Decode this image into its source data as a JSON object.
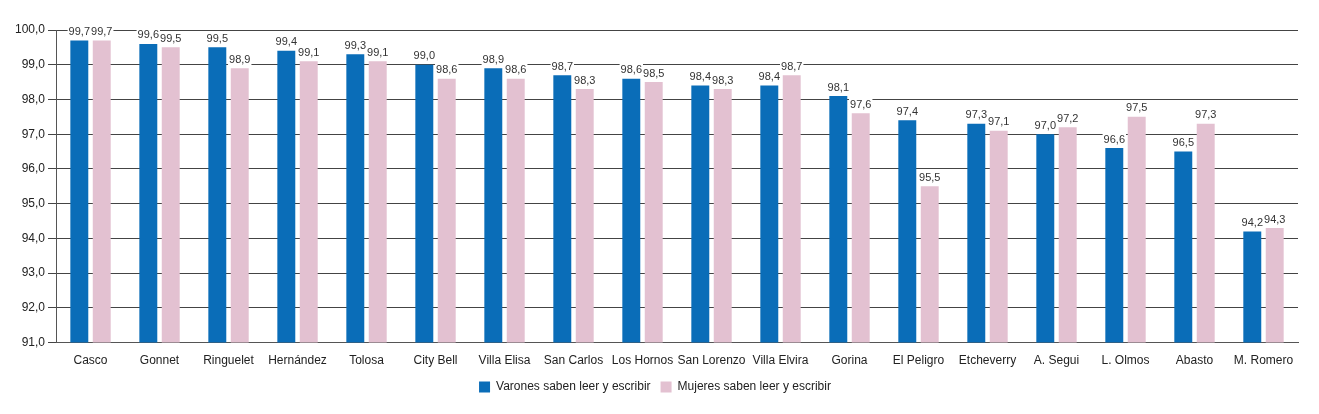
{
  "chart_data": {
    "type": "bar",
    "categories": [
      "Casco",
      "Gonnet",
      "Ringuelet",
      "Hernández",
      "Tolosa",
      "City Bell",
      "Villa Elisa",
      "San Carlos",
      "Los Hornos",
      "San Lorenzo",
      "Villa Elvira",
      "Gorina",
      "El Peligro",
      "Etcheverry",
      "A. Segui",
      "L. Olmos",
      "Abasto",
      "M. Romero"
    ],
    "series": [
      {
        "name": "Varones saben leer y escribir",
        "color": "#0a6db8",
        "values": [
          99.7,
          99.6,
          99.5,
          99.4,
          99.3,
          99.0,
          98.9,
          98.7,
          98.6,
          98.4,
          98.4,
          98.1,
          97.4,
          97.3,
          97.0,
          96.6,
          96.5,
          94.2
        ],
        "value_labels": [
          "99,7",
          "99,6",
          "99,5",
          "99,4",
          "99,3",
          "99,0",
          "98,9",
          "98,7",
          "98,6",
          "98,4",
          "98,4",
          "98,1",
          "97,4",
          "97,3",
          "97,0",
          "96,6",
          "96,5",
          "94,2"
        ]
      },
      {
        "name": "Mujeres saben leer y escribir",
        "color": "#e3c1d1",
        "values": [
          99.7,
          99.5,
          98.9,
          99.1,
          99.1,
          98.6,
          98.6,
          98.3,
          98.5,
          98.3,
          98.7,
          97.6,
          95.5,
          97.1,
          97.2,
          97.5,
          97.3,
          94.3
        ],
        "value_labels": [
          "99,7",
          "99,5",
          "98,9",
          "99,1",
          "99,1",
          "98,6",
          "98,6",
          "98,3",
          "98,5",
          "98,3",
          "98,7",
          "97,6",
          "95,5",
          "97,1",
          "97,2",
          "97,5",
          "97,3",
          "94,3"
        ]
      }
    ],
    "ylim": [
      91,
      100
    ],
    "yticks": [
      {
        "value": 91,
        "label": "91,0"
      },
      {
        "value": 92,
        "label": "92,0"
      },
      {
        "value": 93,
        "label": "93,0"
      },
      {
        "value": 94,
        "label": "94,0"
      },
      {
        "value": 95,
        "label": "95,0"
      },
      {
        "value": 96,
        "label": "96,0"
      },
      {
        "value": 97,
        "label": "97,0"
      },
      {
        "value": 98,
        "label": "98,0"
      },
      {
        "value": 99,
        "label": "99,0"
      },
      {
        "value": 100,
        "label": "100,0"
      }
    ],
    "grid": "y",
    "legend": "bottom"
  }
}
